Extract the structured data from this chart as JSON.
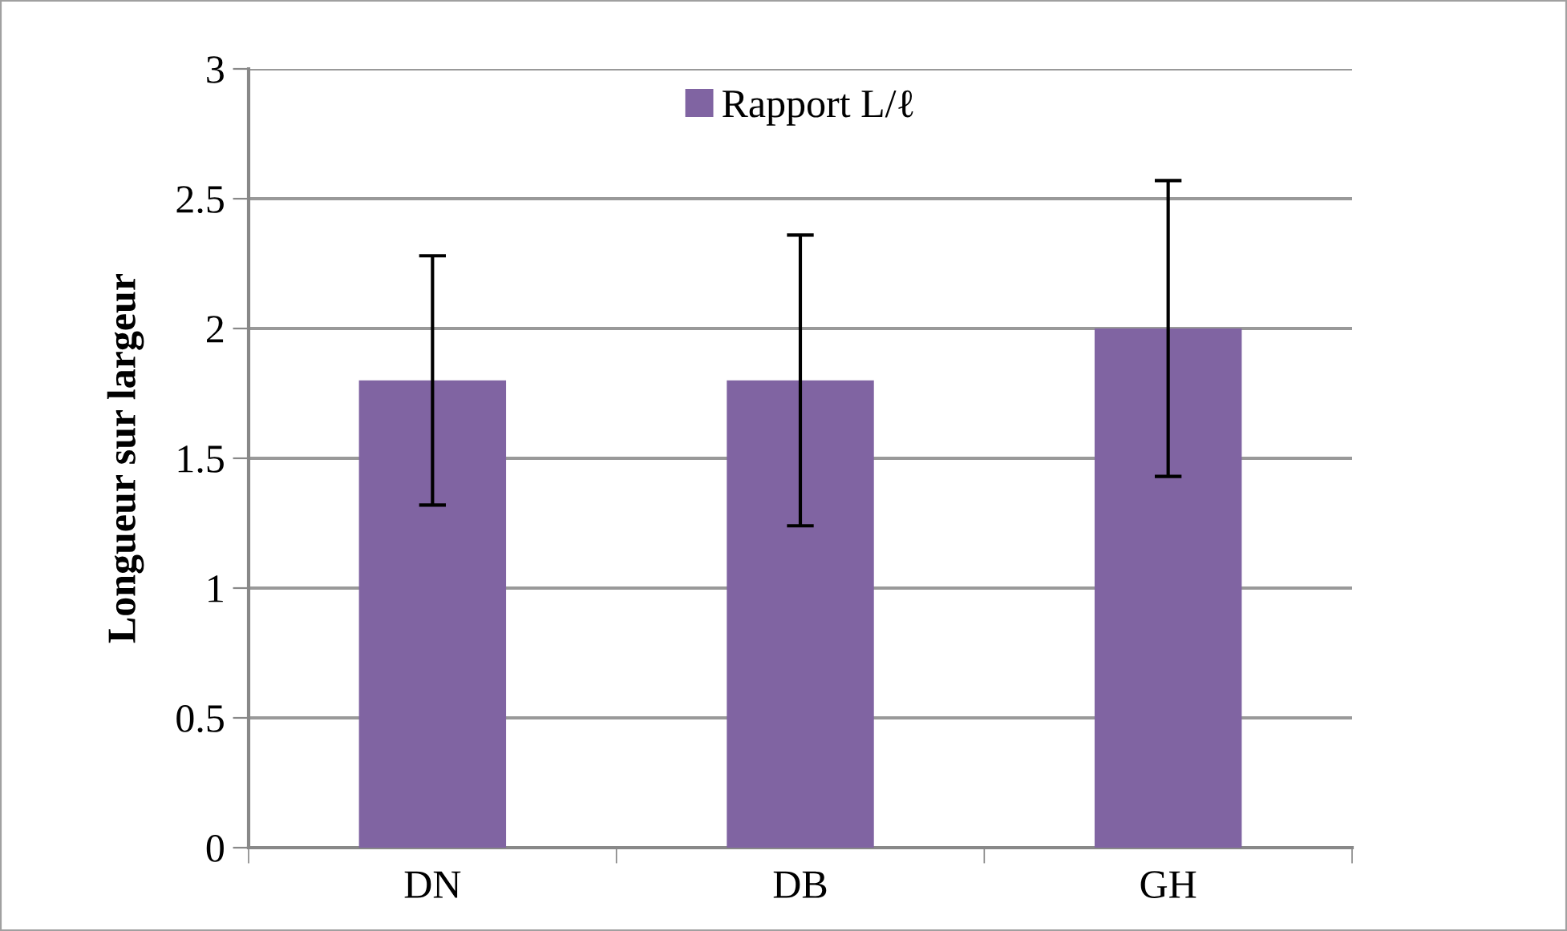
{
  "chart_data": {
    "type": "bar",
    "ylabel": "Longueur sur largeur",
    "categories": [
      "DN",
      "DB",
      "GH"
    ],
    "series": [
      {
        "name": "Rapport L/ℓ",
        "color": "#8064a2",
        "values": [
          1.8,
          1.8,
          2.0
        ],
        "errors": [
          0.48,
          0.56,
          0.57
        ]
      }
    ],
    "ylim": [
      0,
      3
    ],
    "yticks": [
      0,
      0.5,
      1,
      1.5,
      2,
      2.5,
      3
    ],
    "grid": "y",
    "legend": "top"
  }
}
